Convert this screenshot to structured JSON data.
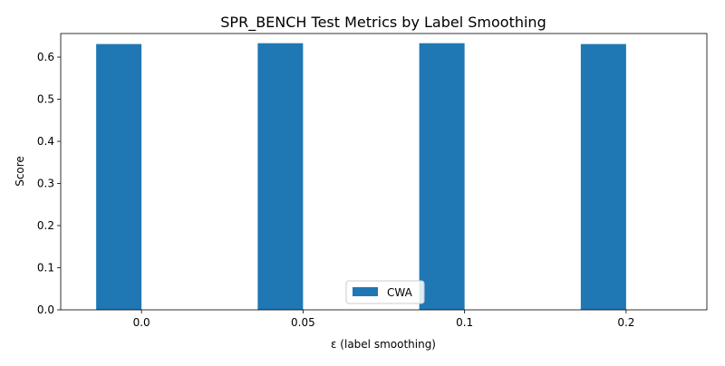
{
  "chart_data": {
    "type": "bar",
    "title": "SPR_BENCH Test Metrics by Label Smoothing",
    "xlabel": "ε (label smoothing)",
    "ylabel": "Score",
    "categories": [
      "0.0",
      "0.05",
      "0.1",
      "0.2"
    ],
    "series": [
      {
        "name": "CWA",
        "values": [
          0.631,
          0.633,
          0.633,
          0.631
        ],
        "color": "#1f77b4"
      }
    ],
    "ylim": [
      0,
      0.656
    ],
    "yticks": [
      "0.0",
      "0.1",
      "0.2",
      "0.3",
      "0.4",
      "0.5",
      "0.6"
    ],
    "grid": false,
    "legend_position": "bottom-center"
  }
}
